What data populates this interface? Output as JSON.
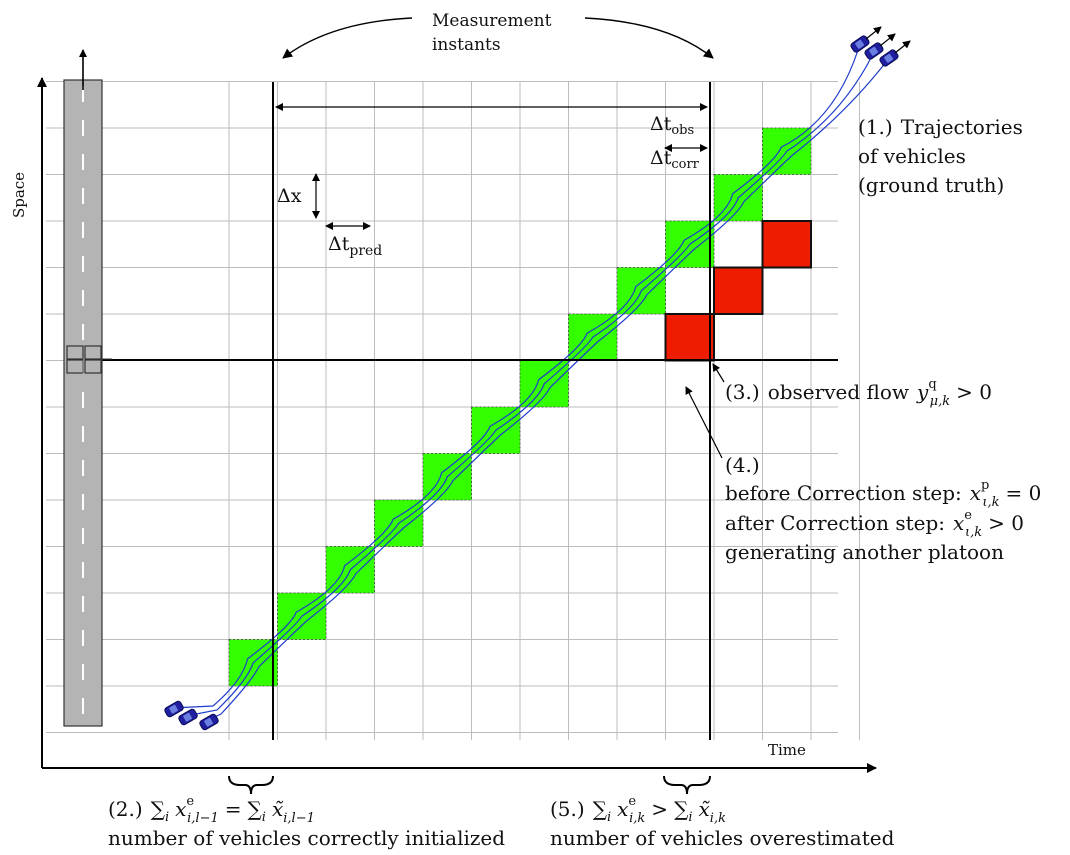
{
  "axes": {
    "space_label": "Space",
    "time_label": "Time"
  },
  "measurement": {
    "line1": "Measurement",
    "line2": "instants"
  },
  "delta": {
    "obs": {
      "sym": "Δt",
      "sub": "obs"
    },
    "corr": {
      "sym": "Δt",
      "sub": "corr"
    },
    "x": "Δx",
    "pred": {
      "sym": "Δt",
      "sub": "pred"
    }
  },
  "annot1": {
    "num": "(1.)",
    "line1": "Trajectories",
    "line2": "of vehicles",
    "line3": "(ground truth)"
  },
  "annot3": {
    "num": "(3.)",
    "text": "observed flow",
    "sym": "y",
    "sup": "q",
    "sub": "μ,k",
    "rel": "> 0"
  },
  "annot4": {
    "num": "(4.)",
    "before": {
      "text": "before Correction step:",
      "sym": "x",
      "sup": "p",
      "sub": "ι,k",
      "rel": "= 0"
    },
    "after": {
      "text": "after Correction step:",
      "sym": "x",
      "sup": "e",
      "sub": "ι,k",
      "rel": "> 0"
    },
    "line4": "generating another platoon"
  },
  "annot2": {
    "num": "(2.)",
    "sum": "∑",
    "sub_i": "i",
    "lhs": {
      "sym": "x",
      "sup": "e",
      "sub": "i,l−1"
    },
    "eq": "=",
    "rhs": {
      "sym": "x̃",
      "sub": "i,l−1"
    },
    "line2": "number of vehicles correctly initialized"
  },
  "annot5": {
    "num": "(5.)",
    "sum": "∑",
    "sub_i": "i",
    "lhs": {
      "sym": "x",
      "sup": "e",
      "sub": "i,k"
    },
    "rel": ">",
    "rhs": {
      "sym": "x̃",
      "sub": "i,k"
    },
    "line2": "number of vehicles overestimated"
  },
  "colors": {
    "green_cell": "#33ff00",
    "red_cell": "#ee1c00",
    "trajectory": "#1e3ccc",
    "car": "#1f1fa0",
    "grid": "#bdbdbd",
    "road": "#b4b4b4"
  },
  "grid": {
    "columns": 13,
    "rows": 13
  },
  "cells": {
    "green": [
      [
        0,
        1
      ],
      [
        1,
        2
      ],
      [
        2,
        3
      ],
      [
        3,
        4
      ],
      [
        4,
        5
      ],
      [
        5,
        6
      ],
      [
        6,
        7
      ],
      [
        7,
        8
      ],
      [
        8,
        9
      ],
      [
        9,
        10
      ],
      [
        10,
        11
      ],
      [
        11,
        12
      ]
    ],
    "red": [
      [
        9,
        8
      ],
      [
        10,
        9
      ],
      [
        11,
        10
      ]
    ]
  },
  "icons": [
    "car-icon"
  ]
}
